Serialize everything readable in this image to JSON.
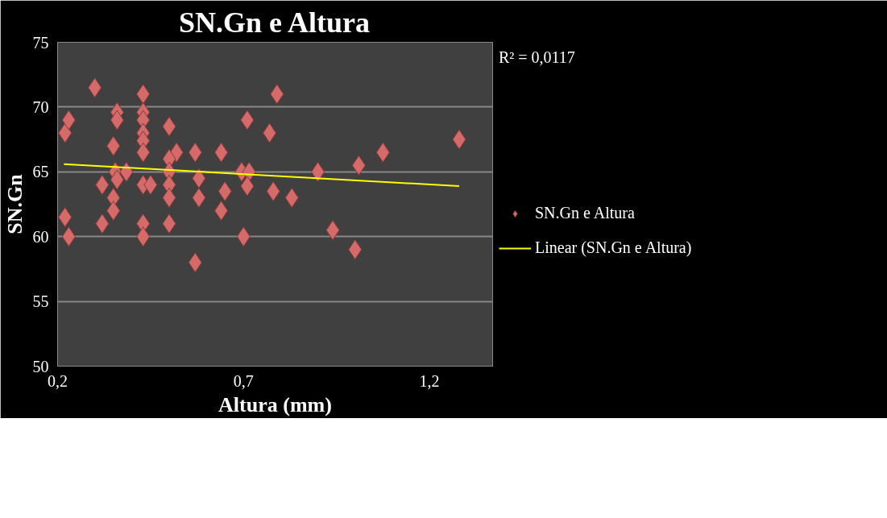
{
  "chart_data": {
    "type": "scatter",
    "title": "SN.Gn e Altura",
    "xlabel": "Altura (mm)",
    "ylabel": "SN.Gn",
    "annotations": [
      "R² = 0,0117"
    ],
    "xlim": [
      0.2,
      1.37
    ],
    "xticks": [
      {
        "value": 0.2,
        "label": "0,2"
      },
      {
        "value": 0.7,
        "label": "0,7"
      },
      {
        "value": 1.2,
        "label": "1,2"
      }
    ],
    "ylim": [
      50,
      75
    ],
    "yticks": [
      50,
      55,
      60,
      65,
      70,
      75
    ],
    "grid": "y",
    "legend": "right",
    "marker": "diamond",
    "series": [
      {
        "name": "SN.Gn e Altura",
        "color": "#d46a6a",
        "x": [
          0.22,
          0.23,
          0.22,
          0.23,
          0.3,
          0.32,
          0.32,
          0.36,
          0.36,
          0.35,
          0.355,
          0.36,
          0.385,
          0.35,
          0.35,
          0.43,
          0.43,
          0.43,
          0.43,
          0.43,
          0.43,
          0.43,
          0.45,
          0.43,
          0.43,
          0.5,
          0.52,
          0.5,
          0.5,
          0.5,
          0.5,
          0.5,
          0.57,
          0.58,
          0.58,
          0.57,
          0.64,
          0.65,
          0.64,
          0.695,
          0.715,
          0.71,
          0.71,
          0.7,
          0.79,
          0.77,
          0.78,
          0.83,
          0.9,
          0.94,
          1.01,
          1.0,
          1.075,
          1.28
        ],
        "values": [
          68,
          69,
          61.5,
          60,
          71.5,
          64,
          61,
          69.6,
          69,
          67,
          65,
          64.4,
          65,
          63,
          62,
          71,
          69.6,
          69,
          68,
          67.4,
          66.5,
          64,
          64,
          61,
          60,
          68.5,
          66.5,
          66,
          65,
          64,
          63,
          61,
          66.5,
          64.5,
          63,
          58,
          66.5,
          63.5,
          62,
          65,
          65,
          63.9,
          69,
          60,
          71,
          68,
          63.5,
          63,
          65,
          60.5,
          65.5,
          59,
          66.5,
          67.5
        ]
      },
      {
        "name": "Linear (SN.Gn e Altura)",
        "type": "line",
        "color": "#ffff00",
        "marker": "none",
        "x": [
          0.217,
          1.28
        ],
        "values": [
          65.6,
          63.9
        ]
      }
    ]
  }
}
